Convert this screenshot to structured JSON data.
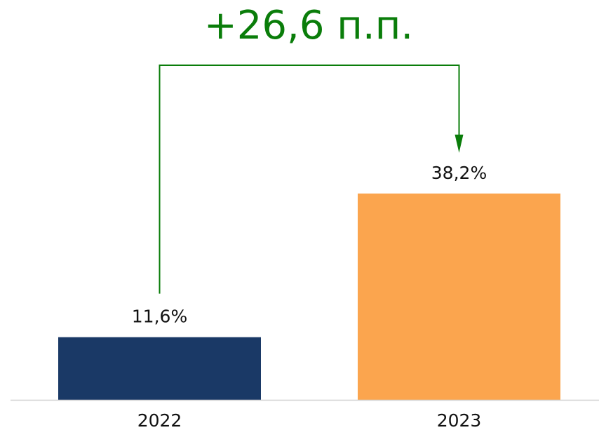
{
  "chart_data": {
    "type": "bar",
    "annotation": "+26,6 п.п.",
    "annotation_color": "#0a7d0a",
    "categories": [
      "2022",
      "2023"
    ],
    "values": [
      11.6,
      38.2
    ],
    "value_labels": [
      "11,6%",
      "38,2%"
    ],
    "colors": [
      "#1a3966",
      "#fba54e"
    ]
  }
}
